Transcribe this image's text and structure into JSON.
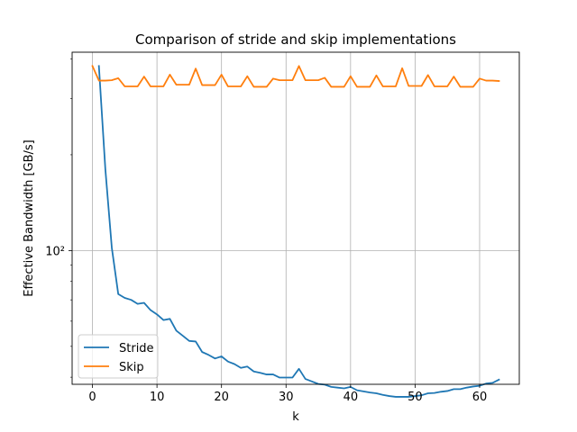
{
  "chart_data": {
    "type": "line",
    "title": "Comparison of stride and skip implementations",
    "xlabel": "k",
    "ylabel": "Effective Bandwidth [GB/s]",
    "yscale": "log",
    "xlim": [
      -3.15,
      66.15
    ],
    "ylim": [
      38,
      420
    ],
    "xticks": [
      0,
      10,
      20,
      30,
      40,
      50,
      60
    ],
    "yticks": [
      100
    ],
    "ytick_labels": [
      "10²"
    ],
    "grid": true,
    "legend_position": "lower-left",
    "series": [
      {
        "name": "Stride",
        "color": "#1f77b4",
        "x": [
          1,
          2,
          3,
          4,
          5,
          6,
          7,
          8,
          9,
          10,
          11,
          12,
          13,
          14,
          15,
          16,
          17,
          18,
          19,
          20,
          21,
          22,
          23,
          24,
          25,
          26,
          27,
          28,
          29,
          30,
          31,
          32,
          33,
          34,
          35,
          36,
          37,
          38,
          39,
          40,
          41,
          42,
          43,
          44,
          45,
          46,
          47,
          48,
          49,
          50,
          51,
          52,
          53,
          54,
          55,
          56,
          57,
          58,
          59,
          60,
          61,
          62,
          63
        ],
        "y": [
          380,
          180,
          102,
          73,
          71,
          70,
          68,
          68.5,
          65,
          63,
          60.5,
          61,
          56,
          54,
          52,
          51.8,
          48,
          47,
          45.8,
          46.5,
          44.8,
          44,
          42.8,
          43.2,
          41.7,
          41.3,
          40.8,
          40.8,
          39.9,
          39.9,
          39.9,
          42.5,
          39.5,
          38.8,
          38.1,
          37.9,
          37.3,
          37.1,
          36.9,
          37.3,
          36.4,
          36.1,
          35.8,
          35.6,
          35.2,
          34.9,
          34.7,
          34.7,
          34.7,
          34.9,
          35.1,
          35.6,
          35.7,
          36,
          36.2,
          36.7,
          36.7,
          37.1,
          37.4,
          37.6,
          38.2,
          38.4,
          39.3
        ]
      },
      {
        "name": "Skip",
        "color": "#ff7f0e",
        "x": [
          0,
          1,
          2,
          3,
          4,
          5,
          6,
          7,
          8,
          9,
          10,
          11,
          12,
          13,
          14,
          15,
          16,
          17,
          18,
          19,
          20,
          21,
          22,
          23,
          24,
          25,
          26,
          27,
          28,
          29,
          30,
          31,
          32,
          33,
          34,
          35,
          36,
          37,
          38,
          39,
          40,
          41,
          42,
          43,
          44,
          45,
          46,
          47,
          48,
          49,
          50,
          51,
          52,
          53,
          54,
          55,
          56,
          57,
          58,
          59,
          60,
          61,
          62,
          63
        ],
        "y": [
          380,
          342,
          342,
          343,
          348,
          328,
          328,
          328,
          352,
          328,
          328,
          328,
          357,
          332,
          332,
          332,
          373,
          331,
          331,
          331,
          357,
          328,
          328,
          328,
          353,
          327,
          327,
          327,
          347,
          343,
          343,
          343,
          380,
          343,
          343,
          343,
          349,
          327,
          327,
          327,
          353,
          327,
          327,
          327,
          355,
          328,
          328,
          328,
          374,
          329,
          329,
          329,
          356,
          328,
          328,
          328,
          352,
          327,
          327,
          327,
          347,
          342,
          342,
          341
        ]
      }
    ]
  }
}
